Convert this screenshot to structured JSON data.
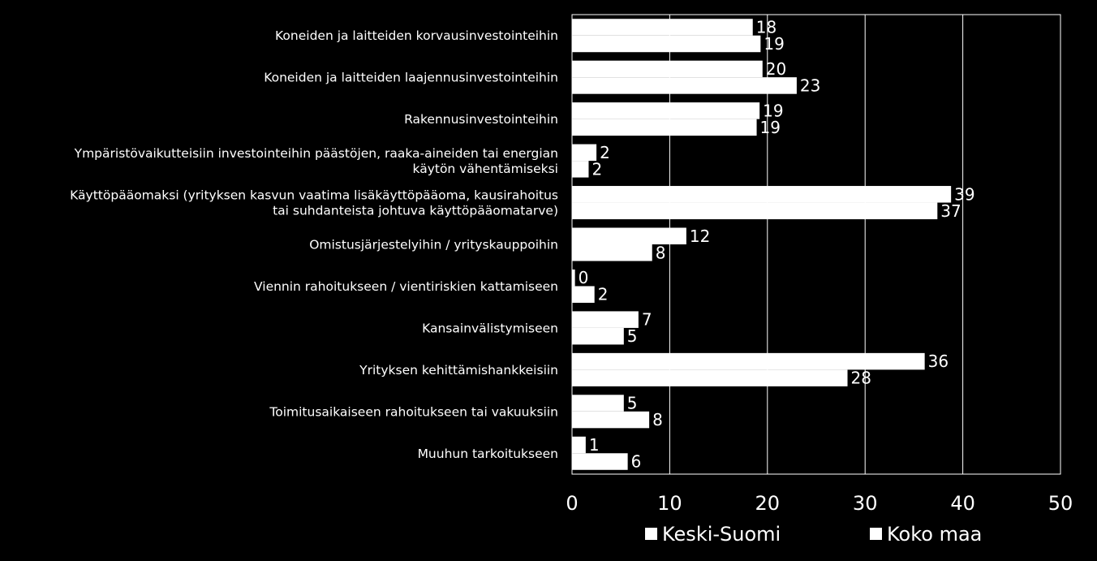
{
  "chart_data": {
    "type": "bar",
    "orientation": "horizontal",
    "categories": [
      [
        "Koneiden ja laitteiden korvausinvestointeihin"
      ],
      [
        "Koneiden ja laitteiden laajennusinvestointeihin"
      ],
      [
        "Rakennusinvestointeihin"
      ],
      [
        "Ympäristövaikutteisiin investointeihin päästöjen, raaka-aineiden tai energian",
        "käytön vähentämiseksi"
      ],
      [
        "Käyttöpääomaksi (yrityksen kasvun vaatima lisäkäyttöpääoma, kausirahoitus",
        "tai suhdanteista johtuva käyttöpääomatarve)"
      ],
      [
        "Omistusjärjestelyihin / yrityskauppoihin"
      ],
      [
        "Viennin rahoitukseen / vientiriskien kattamiseen"
      ],
      [
        "Kansainvälistymiseen"
      ],
      [
        "Yrityksen kehittämishankkeisiin"
      ],
      [
        "Toimitusaikaiseen rahoitukseen tai vakuuksiin"
      ],
      [
        "Muuhun tarkoitukseen"
      ]
    ],
    "series": [
      {
        "name": "Keski-Suomi",
        "values": [
          18.5,
          19.5,
          19.2,
          2.5,
          38.8,
          11.7,
          0.3,
          6.8,
          36.1,
          5.3,
          1.4
        ],
        "labels": [
          "18",
          "20",
          "19",
          "2",
          "39",
          "12",
          "0",
          "7",
          "36",
          "5",
          "1"
        ]
      },
      {
        "name": "Koko maa",
        "values": [
          19.3,
          23.0,
          18.9,
          1.7,
          37.4,
          8.2,
          2.3,
          5.3,
          28.2,
          7.9,
          5.7
        ],
        "labels": [
          "19",
          "23",
          "19",
          "2",
          "37",
          "8",
          "2",
          "5",
          "28",
          "8",
          "6"
        ]
      }
    ],
    "xlim": [
      0,
      50
    ],
    "xticks": [
      "0",
      "10",
      "20",
      "30",
      "40",
      "50"
    ],
    "xtick_values": [
      0,
      10,
      20,
      30,
      40,
      50
    ],
    "grid": "vertical",
    "legend_position": "bottom",
    "colors": {
      "background": "#000000",
      "bar": "#ffffff",
      "grid": "#ffffff",
      "text": "#ffffff"
    },
    "title": "",
    "xlabel": "",
    "ylabel": ""
  }
}
